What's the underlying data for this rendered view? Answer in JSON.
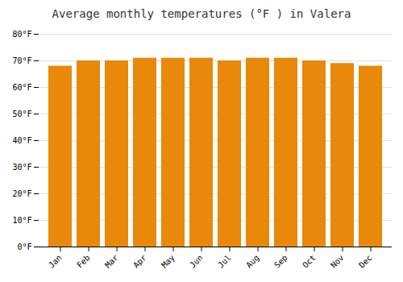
{
  "chart_data": {
    "type": "bar",
    "title": "Average monthly temperatures (°F ) in Valera",
    "categories": [
      "Jan",
      "Feb",
      "Mar",
      "Apr",
      "May",
      "Jun",
      "Jul",
      "Aug",
      "Sep",
      "Oct",
      "Nov",
      "Dec"
    ],
    "values": [
      68,
      70,
      70,
      71,
      71,
      71,
      70,
      71,
      71,
      70,
      69,
      68
    ],
    "color": "#E8890A",
    "ylim": [
      0,
      80
    ],
    "yticks": [
      {
        "value": 0,
        "label": "0°F"
      },
      {
        "value": 10,
        "label": "10°F"
      },
      {
        "value": 20,
        "label": "20°F"
      },
      {
        "value": 30,
        "label": "30°F"
      },
      {
        "value": 40,
        "label": "40°F"
      },
      {
        "value": 50,
        "label": "50°F"
      },
      {
        "value": 60,
        "label": "60°F"
      },
      {
        "value": 70,
        "label": "70°F"
      },
      {
        "value": 80,
        "label": "80°F"
      }
    ],
    "grid": true
  }
}
